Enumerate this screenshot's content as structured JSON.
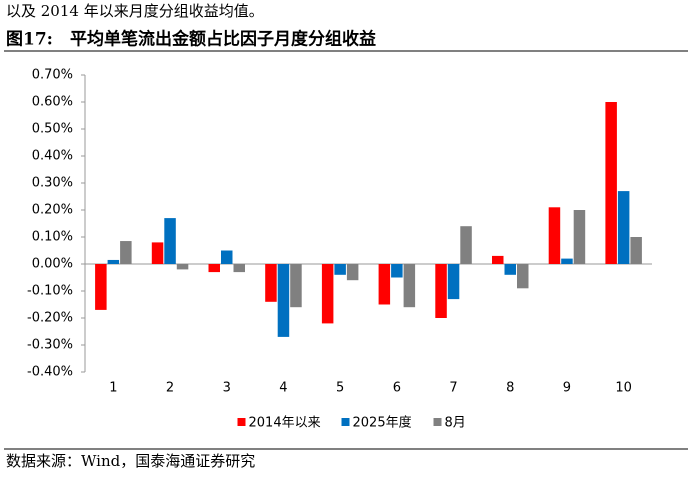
{
  "intro_text": "以及 2014 年以来月度分组收益均值。",
  "figure_label": "图17:",
  "source": "数据来源：Wind，国泰海通证券研究",
  "chart_data": {
    "type": "bar",
    "title": "平均单笔流出金额占比因子月度分组收益",
    "categories": [
      "1",
      "2",
      "3",
      "4",
      "5",
      "6",
      "7",
      "8",
      "9",
      "10"
    ],
    "series": [
      {
        "name": "2014年以来",
        "color": "#ff0000",
        "values": [
          -0.17,
          0.08,
          -0.03,
          -0.14,
          -0.22,
          -0.15,
          -0.2,
          0.03,
          0.21,
          0.6
        ]
      },
      {
        "name": "2025年度",
        "color": "#0070c0",
        "values": [
          0.015,
          0.17,
          0.05,
          -0.27,
          -0.04,
          -0.05,
          -0.13,
          -0.04,
          0.02,
          0.27
        ]
      },
      {
        "name": "8月",
        "color": "#808080",
        "values": [
          0.085,
          -0.02,
          -0.03,
          -0.16,
          -0.06,
          -0.16,
          0.14,
          -0.09,
          0.2,
          0.1
        ]
      }
    ],
    "ylim": [
      -0.4,
      0.7
    ],
    "yticks": [
      {
        "value": -0.4,
        "label": "-0.40%"
      },
      {
        "value": -0.3,
        "label": "-0.30%"
      },
      {
        "value": -0.2,
        "label": "-0.20%"
      },
      {
        "value": -0.1,
        "label": "-0.10%"
      },
      {
        "value": 0,
        "label": "0.00%"
      },
      {
        "value": 0.1,
        "label": "0.10%"
      },
      {
        "value": 0.2,
        "label": "0.20%"
      },
      {
        "value": 0.3,
        "label": "0.30%"
      },
      {
        "value": 0.4,
        "label": "0.40%"
      },
      {
        "value": 0.5,
        "label": "0.50%"
      },
      {
        "value": 0.6,
        "label": "0.60%"
      },
      {
        "value": 0.7,
        "label": "0.70%"
      }
    ],
    "grid": false,
    "legend": "bottom"
  }
}
